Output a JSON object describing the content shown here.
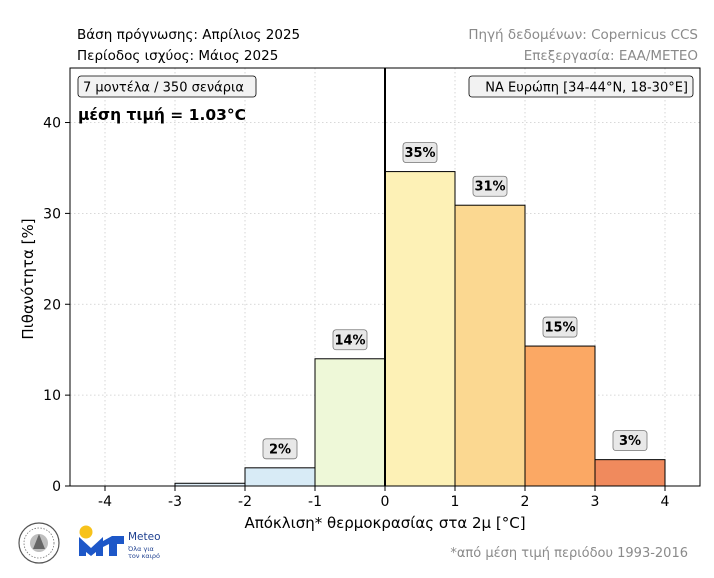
{
  "header": {
    "forecast_base": "Βάση πρόγνωσης: Απρίλιος 2025",
    "validity_period": "Περίοδος ισχύος: Μάιος 2025",
    "data_source": "Πηγή δεδομένων: Copernicus CCS",
    "processing": "Επεξεργασία: ΕΑΑ/METEO"
  },
  "footer": {
    "reference_note": "*από μέση τιμή περιόδου 1993-2016",
    "meteo_name": "Meteo",
    "meteo_tagline_1": "Όλα για",
    "meteo_tagline_2": "τον καιρό"
  },
  "colors": {
    "zero_line": "#000000",
    "grid": "#cccccc",
    "label_box": "#e8e8e8",
    "meteo_blue": "#1d57c8",
    "meteo_sun": "#f7c21b"
  },
  "chart_data": {
    "type": "bar",
    "xlabel": "Απόκλιση* θερμοκρασίας στα 2μ [°C]",
    "ylabel": "Πιθανότητα [%]",
    "xlim": [
      -4.5,
      4.5
    ],
    "ylim": [
      0,
      46
    ],
    "xticks": [
      "-4",
      "-3",
      "-2",
      "-1",
      "0",
      "1",
      "2",
      "3",
      "4"
    ],
    "yticks": [
      "0",
      "10",
      "20",
      "30",
      "40"
    ],
    "grid": true,
    "annotation_left": "7 μοντέλα / 350 σενάρια",
    "annotation_right": "ΝΑ Ευρώπη [34-44°N, 18-30°E]",
    "mean_text": "μέση τιμή = 1.03°C",
    "bins": [
      {
        "from": -3,
        "to": -2,
        "value": 0.3,
        "label": "",
        "color": "#deedf7"
      },
      {
        "from": -2,
        "to": -1,
        "value": 2,
        "label": "2%",
        "color": "#d8ebf6"
      },
      {
        "from": -1,
        "to": 0,
        "value": 14,
        "label": "14%",
        "color": "#eef8d8"
      },
      {
        "from": 0,
        "to": 1,
        "value": 34.6,
        "label": "35%",
        "color": "#fdf1b6"
      },
      {
        "from": 1,
        "to": 2,
        "value": 30.9,
        "label": "31%",
        "color": "#fbd891"
      },
      {
        "from": 2,
        "to": 3,
        "value": 15.4,
        "label": "15%",
        "color": "#fba864"
      },
      {
        "from": 3,
        "to": 4,
        "value": 2.9,
        "label": "3%",
        "color": "#f08a5d"
      }
    ]
  }
}
